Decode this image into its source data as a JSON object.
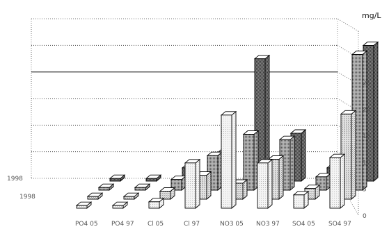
{
  "chart_data": {
    "type": "bar",
    "subtype": "3d-grouped-bar",
    "title": "",
    "unit_label": "mg/L",
    "ylim": [
      0,
      30
    ],
    "yticks": [
      "0",
      "5",
      "10",
      "15",
      "20",
      "25"
    ],
    "grid": true,
    "categories": [
      "PO4 05",
      "PO4 97",
      "Cl 05",
      "Cl 97",
      "NO3 05",
      "NO3 97",
      "SO4 05",
      "SO4 97"
    ],
    "series": [
      {
        "name": "1998",
        "values": [
          0.5,
          0.5,
          1.2,
          8.5,
          17.5,
          8.5,
          2.5,
          9.5
        ]
      },
      {
        "name": "1998",
        "values": [
          0.5,
          0.5,
          1.5,
          4.5,
          3.0,
          7.5,
          2.0,
          16.0
        ]
      },
      {
        "name": "",
        "values": [
          0.5,
          0.5,
          2.0,
          6.5,
          10.5,
          9.5,
          2.5,
          25.5
        ]
      },
      {
        "name": "",
        "values": [
          0.5,
          0.5,
          2.5,
          5.5,
          23.0,
          9.0,
          2.5,
          25.5
        ]
      }
    ]
  },
  "colors": {
    "series": [
      "#efefef",
      "#cfcfcf",
      "#9a9a9a",
      "#6a6a6a"
    ],
    "grid": "#555555",
    "axis": "#888888"
  }
}
